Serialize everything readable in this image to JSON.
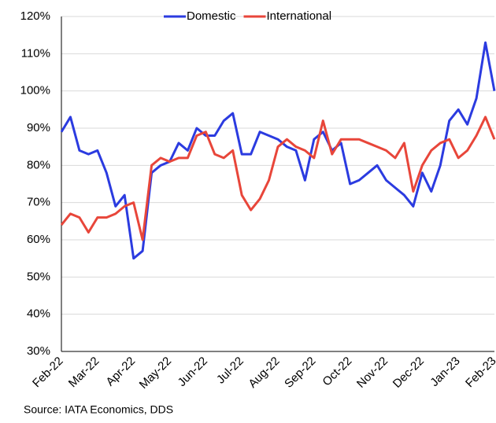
{
  "chart_data": {
    "type": "line",
    "source": "Source: IATA Economics, DDS",
    "categories": [
      "Feb-22",
      null,
      null,
      null,
      "Mar-22",
      null,
      null,
      null,
      "Apr-22",
      null,
      null,
      null,
      "May-22",
      null,
      null,
      null,
      "Jun-22",
      null,
      null,
      null,
      "Jul-22",
      null,
      null,
      null,
      "Aug-22",
      null,
      null,
      null,
      "Sep-22",
      null,
      null,
      null,
      "Oct-22",
      null,
      null,
      null,
      "Nov-22",
      null,
      null,
      null,
      "Dec-22",
      null,
      null,
      null,
      "Jan-23",
      null,
      null,
      null,
      "Feb-23"
    ],
    "series": [
      {
        "name": "Domestic",
        "color": "#2b3be0",
        "values": [
          89,
          93,
          84,
          83,
          84,
          78,
          69,
          72,
          55,
          57,
          78,
          80,
          81,
          86,
          84,
          90,
          88,
          88,
          92,
          94,
          83,
          83,
          89,
          88,
          87,
          85,
          84,
          76,
          87,
          89,
          84,
          86,
          75,
          76,
          78,
          80,
          76,
          74,
          72,
          69,
          78,
          73,
          80,
          92,
          95,
          91,
          98,
          113,
          100
        ]
      },
      {
        "name": "International",
        "color": "#e8463a",
        "values": [
          64,
          67,
          66,
          62,
          66,
          66,
          67,
          69,
          70,
          60,
          80,
          82,
          81,
          82,
          82,
          88,
          89,
          83,
          82,
          84,
          72,
          68,
          71,
          76,
          85,
          87,
          85,
          84,
          82,
          92,
          83,
          87,
          87,
          87,
          86,
          85,
          84,
          82,
          86,
          73,
          80,
          84,
          86,
          87,
          82,
          84,
          88,
          93,
          87
        ]
      }
    ],
    "ylim": [
      30,
      120
    ],
    "yticks": [
      {
        "value": 30,
        "label": "30%"
      },
      {
        "value": 40,
        "label": "40%"
      },
      {
        "value": 50,
        "label": "50%"
      },
      {
        "value": 60,
        "label": "60%"
      },
      {
        "value": 70,
        "label": "70%"
      },
      {
        "value": 80,
        "label": "80%"
      },
      {
        "value": 90,
        "label": "90%"
      },
      {
        "value": 100,
        "label": "100%"
      },
      {
        "value": 110,
        "label": "110%"
      },
      {
        "value": 120,
        "label": "120%"
      }
    ],
    "grid": true
  }
}
